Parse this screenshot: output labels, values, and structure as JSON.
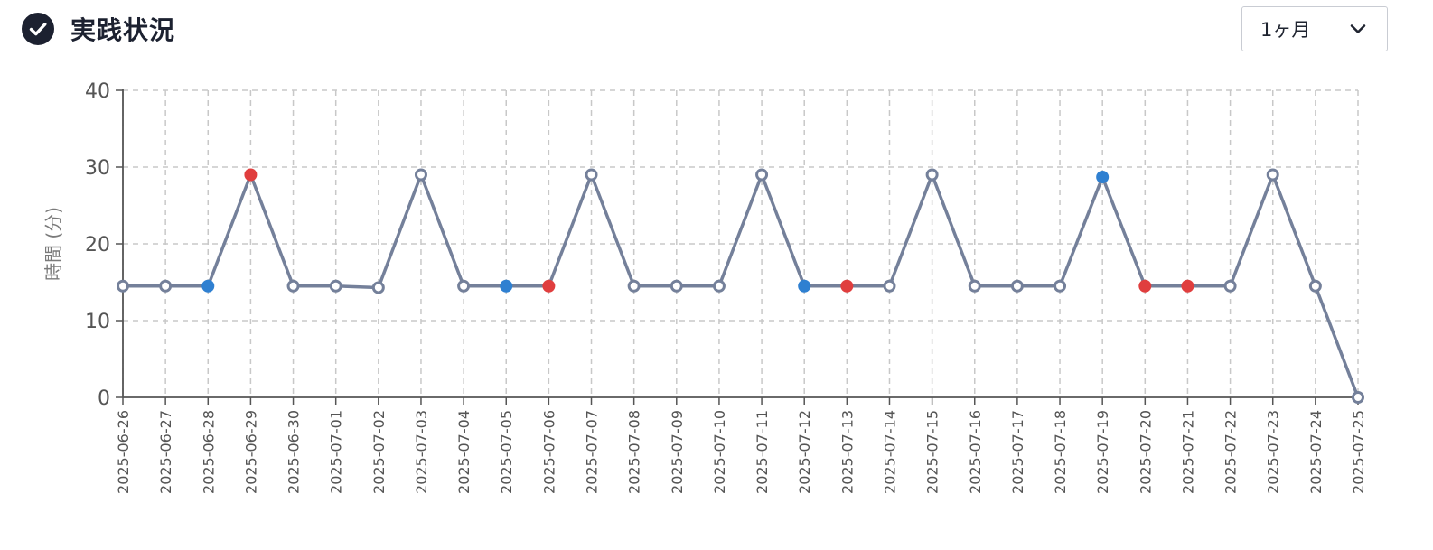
{
  "header": {
    "title": "実践状況"
  },
  "period_select": {
    "value": "1ヶ月"
  },
  "colors": {
    "line": "#74809a",
    "blue": "#2f80d1",
    "red": "#e03e3e",
    "open": "#ffffff",
    "grid": "#c8c8c8",
    "axis": "#555555",
    "tick_text": "#555555"
  },
  "chart_data": {
    "type": "line",
    "xlabel": "",
    "ylabel": "時間 (分)",
    "ylim": [
      0,
      40
    ],
    "yticks": [
      0,
      10,
      20,
      30,
      40
    ],
    "grid": true,
    "categories": [
      "2025-06-26",
      "2025-06-27",
      "2025-06-28",
      "2025-06-29",
      "2025-06-30",
      "2025-07-01",
      "2025-07-02",
      "2025-07-03",
      "2025-07-04",
      "2025-07-05",
      "2025-07-06",
      "2025-07-07",
      "2025-07-08",
      "2025-07-09",
      "2025-07-10",
      "2025-07-11",
      "2025-07-12",
      "2025-07-13",
      "2025-07-14",
      "2025-07-15",
      "2025-07-16",
      "2025-07-17",
      "2025-07-18",
      "2025-07-19",
      "2025-07-20",
      "2025-07-21",
      "2025-07-22",
      "2025-07-23",
      "2025-07-24",
      "2025-07-25"
    ],
    "series": [
      {
        "values": [
          14.5,
          14.5,
          14.5,
          29,
          14.5,
          14.5,
          14.3,
          29,
          14.5,
          14.5,
          14.5,
          29,
          14.5,
          14.5,
          14.5,
          29,
          14.5,
          14.5,
          14.5,
          29,
          14.5,
          14.5,
          14.5,
          28.7,
          14.5,
          14.5,
          14.5,
          29,
          14.5,
          0
        ],
        "marker_colors": [
          "open",
          "open",
          "blue",
          "red",
          "open",
          "open",
          "open",
          "open",
          "open",
          "blue",
          "red",
          "open",
          "open",
          "open",
          "open",
          "open",
          "blue",
          "red",
          "open",
          "open",
          "open",
          "open",
          "open",
          "blue",
          "red",
          "red",
          "open",
          "open",
          "open",
          "open"
        ]
      }
    ]
  }
}
